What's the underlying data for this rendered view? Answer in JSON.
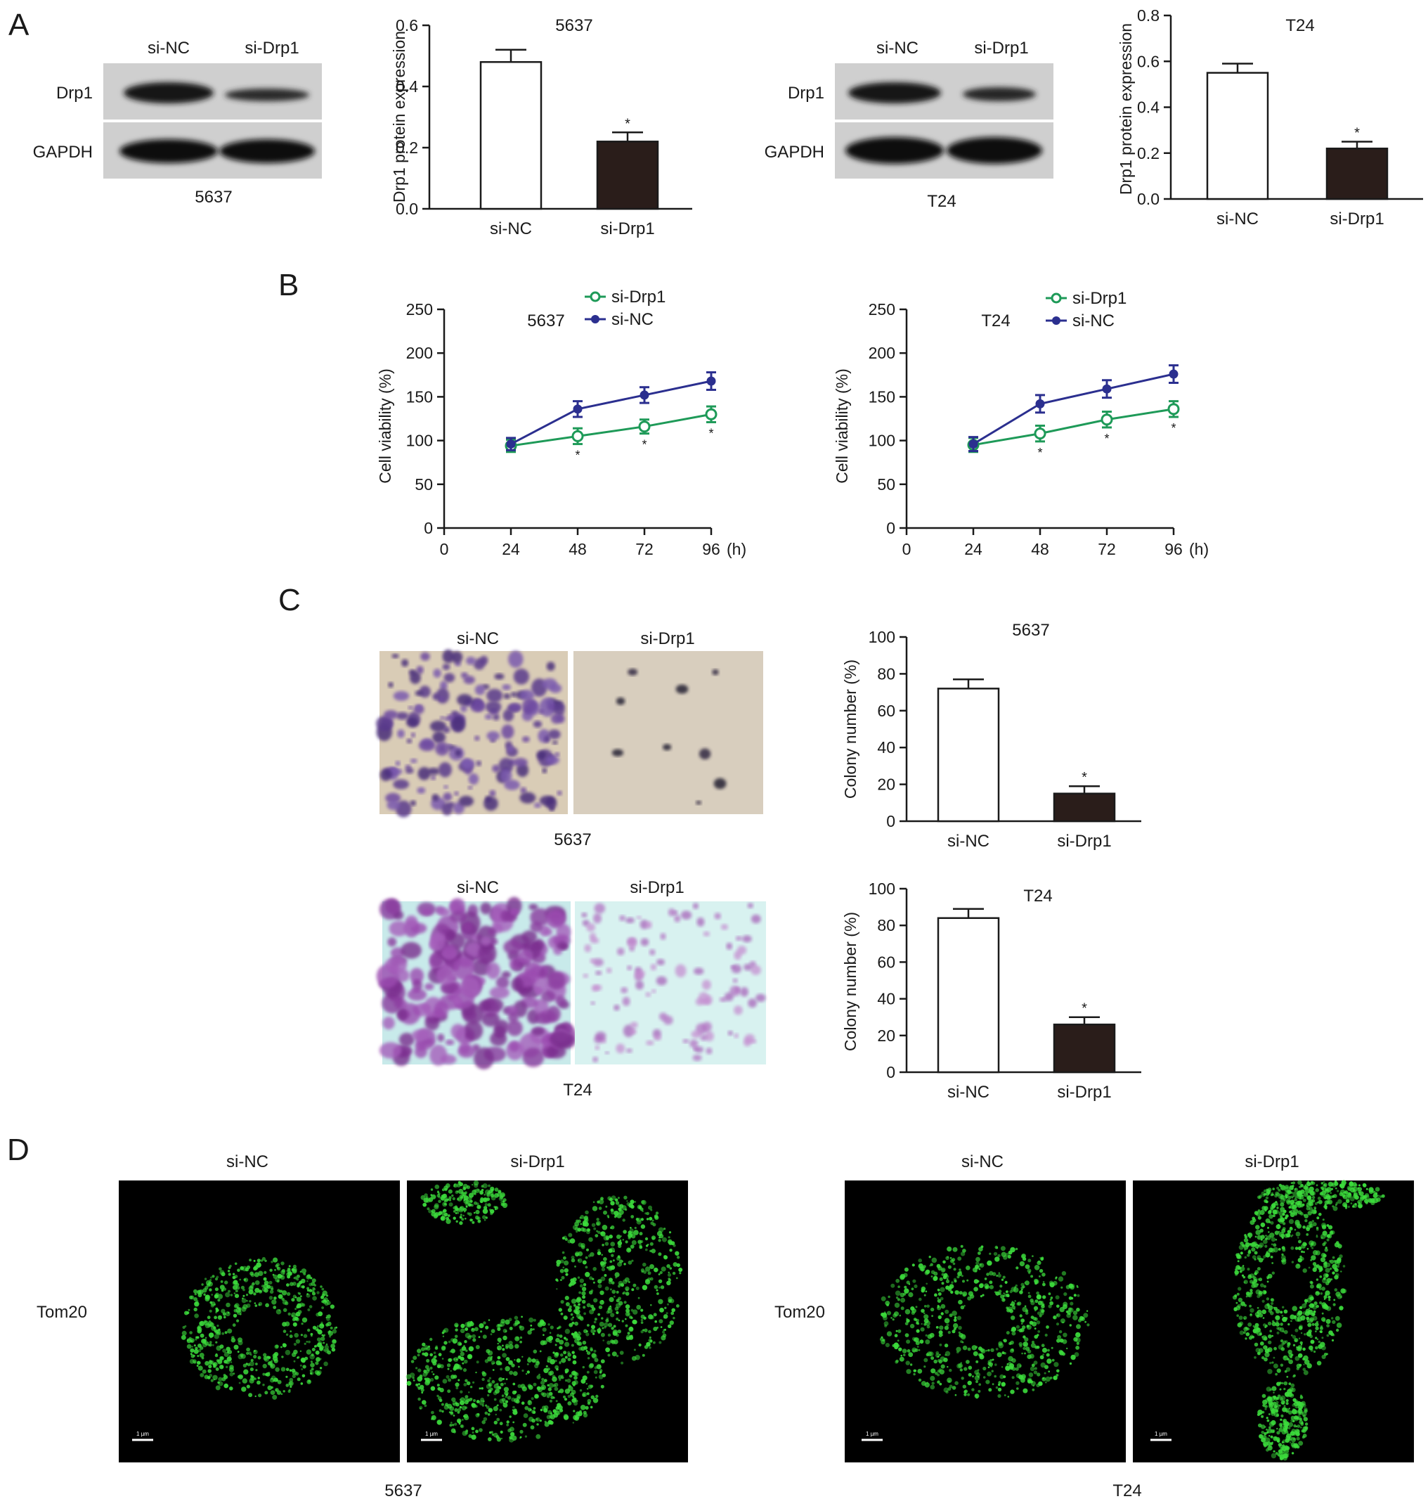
{
  "panels": {
    "A": {
      "letter": "A",
      "blot_5637": {
        "lanes": [
          "si-NC",
          "si-Drp1"
        ],
        "rows": [
          "Drp1",
          "GAPDH"
        ],
        "cell_line": "5637"
      },
      "blot_t24": {
        "lanes": [
          "si-NC",
          "si-Drp1"
        ],
        "rows": [
          "Drp1",
          "GAPDH"
        ],
        "cell_line": "T24"
      }
    },
    "B": {
      "letter": "B"
    },
    "C": {
      "letter": "C",
      "images_5637": {
        "labels": [
          "si-NC",
          "si-Drp1"
        ],
        "cell_line": "5637"
      },
      "images_t24": {
        "labels": [
          "si-NC",
          "si-Drp1"
        ],
        "cell_line": "T24"
      }
    },
    "D": {
      "letter": "D",
      "row_label_left": "Tom20",
      "row_label_right": "Tom20",
      "labels_5637": [
        "si-NC",
        "si-Drp1"
      ],
      "labels_t24": [
        "si-NC",
        "si-Drp1"
      ],
      "cell_line_5637": "5637",
      "cell_line_t24": "T24",
      "scale_label": "1 µm"
    }
  },
  "colors": {
    "bar_control": "#ffffff",
    "bar_knockdown": "#2a1d1a",
    "line_si_drp1": "#1e9a58",
    "line_si_nc": "#2b2f8f",
    "fluorescence": "#3cdc3c"
  },
  "chart_data": [
    {
      "id": "a-5637",
      "type": "bar",
      "title": "5637",
      "categories": [
        "si-NC",
        "si-Drp1"
      ],
      "values": [
        0.48,
        0.22
      ],
      "errors": [
        0.04,
        0.03
      ],
      "significance": [
        "",
        "*"
      ],
      "xlabel": "",
      "ylabel": "Drp1 protein expression",
      "ylim": [
        0,
        0.6
      ],
      "yticks": [
        "0.0",
        "0.2",
        "0.4",
        "0.6"
      ]
    },
    {
      "id": "a-t24",
      "type": "bar",
      "title": "T24",
      "categories": [
        "si-NC",
        "si-Drp1"
      ],
      "values": [
        0.55,
        0.22
      ],
      "errors": [
        0.04,
        0.03
      ],
      "significance": [
        "",
        "*"
      ],
      "xlabel": "",
      "ylabel": "Drp1 protein expression",
      "ylim": [
        0,
        0.8
      ],
      "yticks": [
        "0.0",
        "0.2",
        "0.4",
        "0.6",
        "0.8"
      ]
    },
    {
      "id": "b-5637",
      "type": "line",
      "title": "5637",
      "x": [
        24,
        48,
        72,
        96
      ],
      "xticks": [
        "0",
        "24",
        "48",
        "72",
        "96"
      ],
      "xunit": "(h)",
      "xlim": [
        0,
        96
      ],
      "ylim": [
        0,
        250
      ],
      "yticks": [
        "0",
        "50",
        "100",
        "150",
        "200",
        "250"
      ],
      "ylabel": "Cell viability (%)",
      "legend": "top",
      "series": [
        {
          "name": "si-Drp1",
          "values": [
            94,
            105,
            116,
            130
          ],
          "errors": [
            7,
            9,
            8,
            9
          ],
          "significance": [
            "",
            "*",
            "*",
            "*"
          ],
          "marker": "open-circle"
        },
        {
          "name": "si-NC",
          "values": [
            96,
            136,
            152,
            168
          ],
          "errors": [
            7,
            9,
            9,
            10
          ],
          "significance": [
            "",
            "",
            "",
            ""
          ],
          "marker": "filled-circle"
        }
      ]
    },
    {
      "id": "b-t24",
      "type": "line",
      "title": "T24",
      "x": [
        24,
        48,
        72,
        96
      ],
      "xticks": [
        "0",
        "24",
        "48",
        "72",
        "96"
      ],
      "xunit": "(h)",
      "xlim": [
        0,
        96
      ],
      "ylim": [
        0,
        250
      ],
      "yticks": [
        "0",
        "50",
        "100",
        "150",
        "200",
        "250"
      ],
      "ylabel": "Cell viability (%)",
      "legend": "top",
      "series": [
        {
          "name": "si-Drp1",
          "values": [
            95,
            108,
            124,
            136
          ],
          "errors": [
            8,
            9,
            9,
            9
          ],
          "significance": [
            "",
            "*",
            "*",
            "*"
          ],
          "marker": "open-circle"
        },
        {
          "name": "si-NC",
          "values": [
            96,
            142,
            159,
            176
          ],
          "errors": [
            8,
            10,
            10,
            10
          ],
          "significance": [
            "",
            "",
            "",
            ""
          ],
          "marker": "filled-circle"
        }
      ]
    },
    {
      "id": "c-5637",
      "type": "bar",
      "title": "5637",
      "categories": [
        "si-NC",
        "si-Drp1"
      ],
      "values": [
        72,
        15
      ],
      "errors": [
        5,
        4
      ],
      "significance": [
        "",
        "*"
      ],
      "xlabel": "",
      "ylabel": "Colony number (%)",
      "ylim": [
        0,
        100
      ],
      "yticks": [
        "0",
        "20",
        "40",
        "60",
        "80",
        "100"
      ]
    },
    {
      "id": "c-t24",
      "type": "bar",
      "title": "T24",
      "categories": [
        "si-NC",
        "si-Drp1"
      ],
      "values": [
        84,
        26
      ],
      "errors": [
        5,
        4
      ],
      "significance": [
        "",
        "*"
      ],
      "xlabel": "",
      "ylabel": "Colony number (%)",
      "ylim": [
        0,
        100
      ],
      "yticks": [
        "0",
        "20",
        "40",
        "60",
        "80",
        "100"
      ]
    }
  ]
}
